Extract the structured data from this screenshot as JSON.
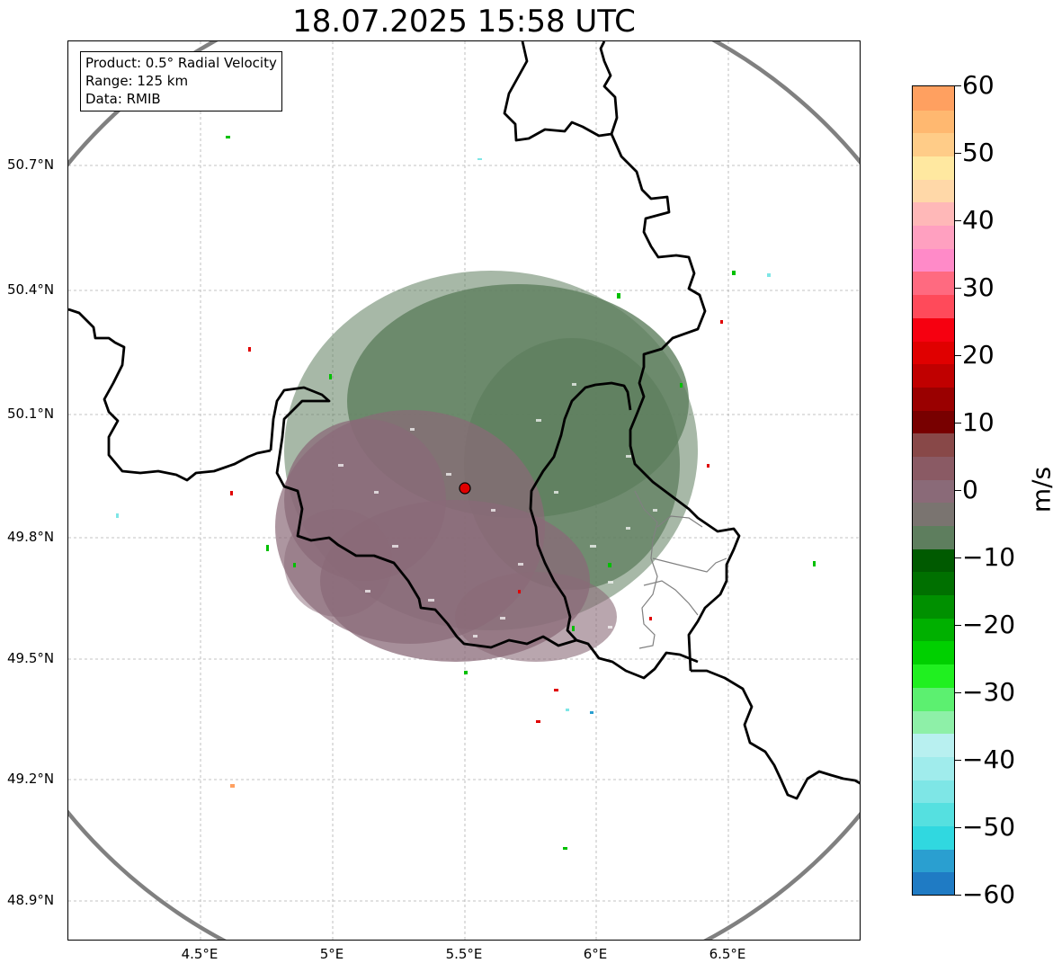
{
  "title": "18.07.2025 15:58 UTC",
  "info": {
    "product": "Product: 0.5° Radial Velocity",
    "range": "Range: 125 km",
    "data": "Data: RMIB"
  },
  "lat_labels": [
    "50.7°N",
    "50.4°N",
    "50.1°N",
    "49.8°N",
    "49.5°N",
    "49.2°N",
    "48.9°N"
  ],
  "lon_labels": [
    "4.5°E",
    "5°E",
    "5.5°E",
    "6°E",
    "6.5°E"
  ],
  "colorbar": {
    "unit": "m/s",
    "ticks": [
      "60",
      "50",
      "40",
      "30",
      "20",
      "10",
      "0",
      "−10",
      "−20",
      "−30",
      "−40",
      "−50",
      "−60"
    ],
    "range": [
      -60,
      60
    ],
    "colors": [
      "#1f7bc4",
      "#2a9fd0",
      "#30d8e0",
      "#55e0e0",
      "#7ee6e6",
      "#a0ecec",
      "#b8f0f0",
      "#8ef0a8",
      "#5cf070",
      "#20f020",
      "#00d000",
      "#00b000",
      "#009000",
      "#007000",
      "#005a00",
      "#5e7e5e",
      "#7a7470",
      "#8a6a78",
      "#8a5a64",
      "#884848",
      "#780000",
      "#9a0000",
      "#c00000",
      "#e00000",
      "#f60010",
      "#ff4a5a",
      "#ff6a80",
      "#ff8ac8",
      "#ffa0c0",
      "#ffb8b8",
      "#ffd8a8",
      "#ffe8a0",
      "#ffcc88",
      "#ffb870",
      "#ffa060"
    ]
  },
  "radar": {
    "site_lon": 5.5,
    "site_lat": 49.915,
    "range_km": 125
  },
  "map_extent": {
    "lon": [
      4.0,
      7.0
    ],
    "lat": [
      48.8,
      50.98
    ]
  },
  "colors": {
    "gray_green": "#5e7e5e",
    "mauve": "#8a6a78",
    "range_ring": "#808080",
    "site_marker": "#e00000"
  }
}
